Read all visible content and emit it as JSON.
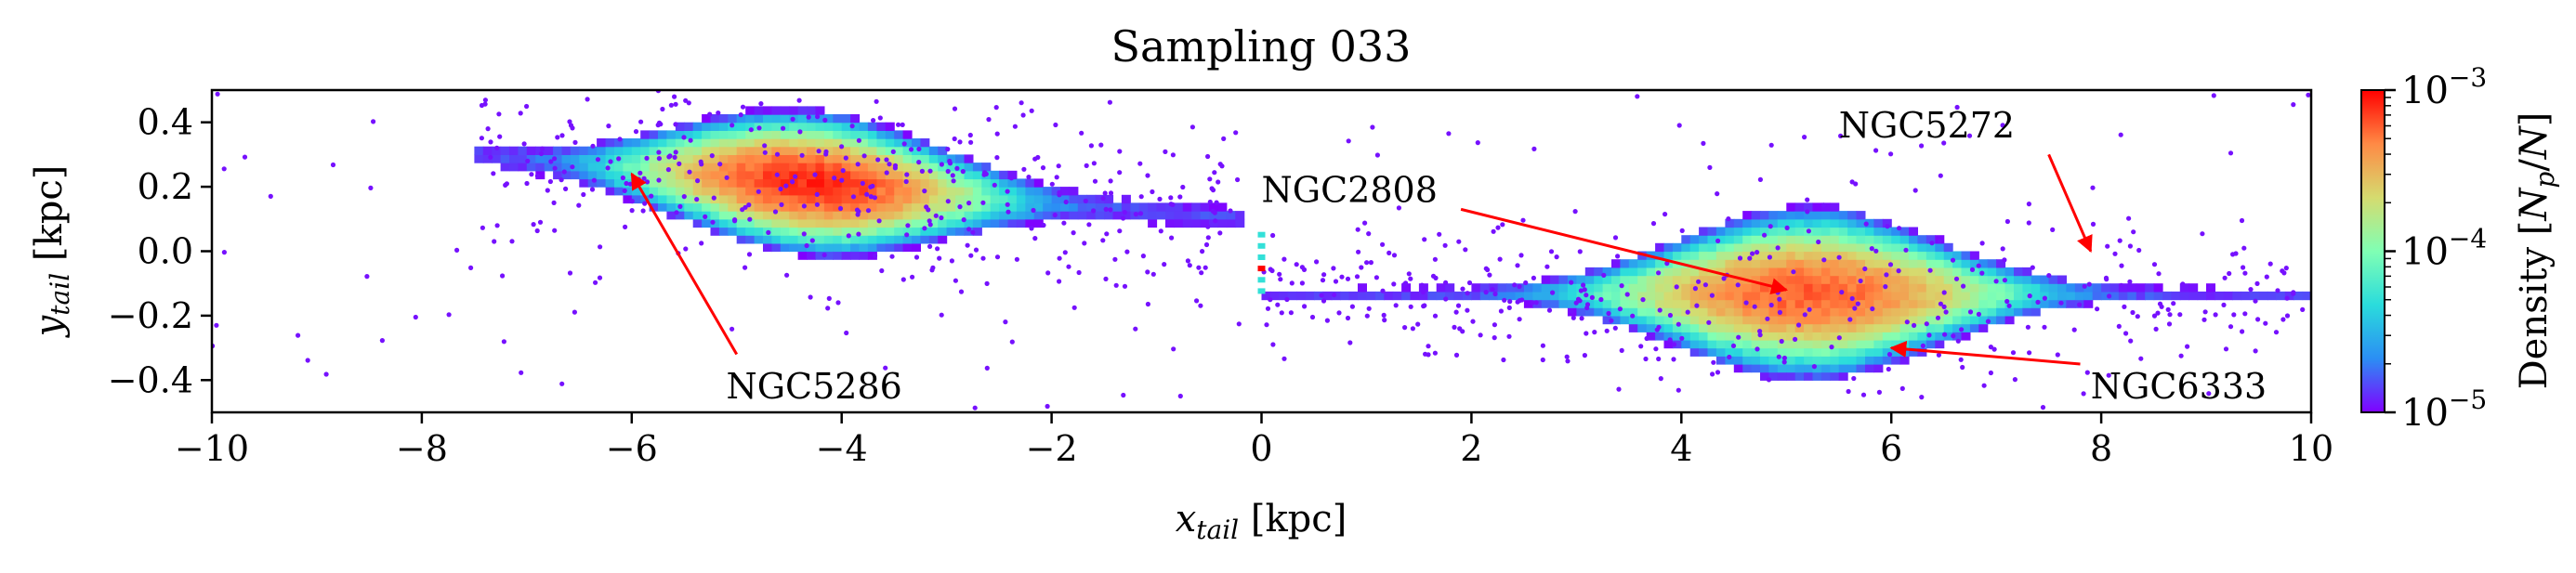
{
  "chart_data": {
    "type": "heatmap",
    "title": "Sampling 033",
    "xlabel": {
      "main": "x",
      "sub": "tail",
      "unit": " [kpc]"
    },
    "ylabel": {
      "main": "y",
      "sub": "tail",
      "unit": " [kpc]"
    },
    "xlim": [
      -10,
      10
    ],
    "ylim": [
      -0.5,
      0.5
    ],
    "x_ticks": [
      -10,
      -8,
      -6,
      -4,
      -2,
      0,
      2,
      4,
      6,
      8,
      10
    ],
    "x_tick_labels": [
      "−10",
      "−8",
      "−6",
      "−4",
      "−2",
      "0",
      "2",
      "4",
      "6",
      "8",
      "10"
    ],
    "y_ticks": [
      -0.4,
      -0.2,
      0.0,
      0.2,
      0.4
    ],
    "y_tick_labels": [
      "−0.4",
      "−0.2",
      "0.0",
      "0.2",
      "0.4"
    ],
    "colorbar": {
      "label": "Density [N_p/N]",
      "scale": "log",
      "range": [
        1e-05,
        0.001
      ],
      "tick_labels": [
        {
          "value": 0.001,
          "base": "10",
          "exp": "−3"
        },
        {
          "value": 0.0001,
          "base": "10",
          "exp": "−4"
        },
        {
          "value": 1e-05,
          "base": "10",
          "exp": "−5"
        }
      ],
      "colormap": "rainbow",
      "colormap_stops": [
        "#8000ff",
        "#2b8ef4",
        "#2adcdc",
        "#80ffb4",
        "#d5db6f",
        "#ff8a45",
        "#ff0000"
      ]
    },
    "features": [
      {
        "x_range": [
          -7.5,
          -0.2
        ],
        "y_center_left": 0.3,
        "y_center_right": 0.1,
        "peak_x": -4.3,
        "peak_y": 0.08,
        "peak_density": 0.0008
      },
      {
        "x_range": [
          0.0,
          10.0
        ],
        "y_center": -0.13,
        "peak_x": 5.2,
        "peak_y": -0.14,
        "peak_density": 0.0006
      }
    ],
    "annotations": [
      {
        "text": "NGC5286",
        "text_x": -5.1,
        "text_y": -0.42,
        "arrow_from": [
          -5.0,
          -0.32
        ],
        "arrow_to": [
          -6.0,
          0.24
        ]
      },
      {
        "text": "NGC2808",
        "text_x": 0.0,
        "text_y": 0.19,
        "arrow_from": [
          1.9,
          0.13
        ],
        "arrow_to": [
          5.0,
          -0.12
        ]
      },
      {
        "text": "NGC5272",
        "text_x": 5.5,
        "text_y": 0.39,
        "arrow_from": [
          7.5,
          0.3
        ],
        "arrow_to": [
          7.9,
          0.0
        ]
      },
      {
        "text": "NGC6333",
        "text_x": 7.9,
        "text_y": -0.42,
        "arrow_from": [
          7.8,
          -0.35
        ],
        "arrow_to": [
          6.0,
          -0.3
        ]
      }
    ]
  }
}
